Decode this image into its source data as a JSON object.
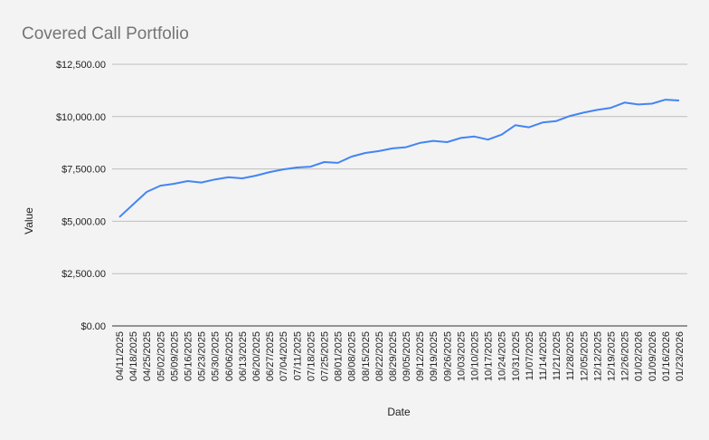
{
  "chart_data": {
    "type": "line",
    "title": "Covered Call Portfolio",
    "xlabel": "Date",
    "ylabel": "Value",
    "ylim": [
      0,
      12500
    ],
    "yticks": [
      0,
      2500,
      5000,
      7500,
      10000,
      12500
    ],
    "ytick_labels": [
      "$0.00",
      "$2,500.00",
      "$5,000.00",
      "$7,500.00",
      "$10,000.00",
      "$12,500.00"
    ],
    "grid": true,
    "line_color": "#4285f4",
    "x": [
      "04/11/2025",
      "04/18/2025",
      "04/25/2025",
      "05/02/2025",
      "05/09/2025",
      "05/16/2025",
      "05/23/2025",
      "05/30/2025",
      "06/06/2025",
      "06/13/2025",
      "06/20/2025",
      "06/27/2025",
      "07/04/2025",
      "07/11/2025",
      "07/18/2025",
      "07/25/2025",
      "08/01/2025",
      "08/08/2025",
      "08/15/2025",
      "08/22/2025",
      "08/29/2025",
      "09/05/2025",
      "09/12/2025",
      "09/19/2025",
      "09/26/2025",
      "10/03/2025",
      "10/10/2025",
      "10/17/2025",
      "10/24/2025",
      "10/31/2025",
      "11/07/2025",
      "11/14/2025",
      "11/21/2025",
      "11/28/2025",
      "12/05/2025",
      "12/12/2025",
      "12/19/2025",
      "12/26/2025",
      "01/02/2026",
      "01/09/2026",
      "01/16/2026",
      "01/23/2026"
    ],
    "series": [
      {
        "name": "Value",
        "values": [
          5200,
          5800,
          6400,
          6700,
          6790,
          6920,
          6850,
          7000,
          7100,
          7050,
          7180,
          7350,
          7480,
          7570,
          7610,
          7830,
          7790,
          8090,
          8260,
          8350,
          8480,
          8540,
          8740,
          8840,
          8780,
          8980,
          9050,
          8900,
          9140,
          9590,
          9490,
          9720,
          9790,
          10030,
          10190,
          10320,
          10420,
          10670,
          10580,
          10620,
          10810,
          10770
        ]
      }
    ]
  }
}
